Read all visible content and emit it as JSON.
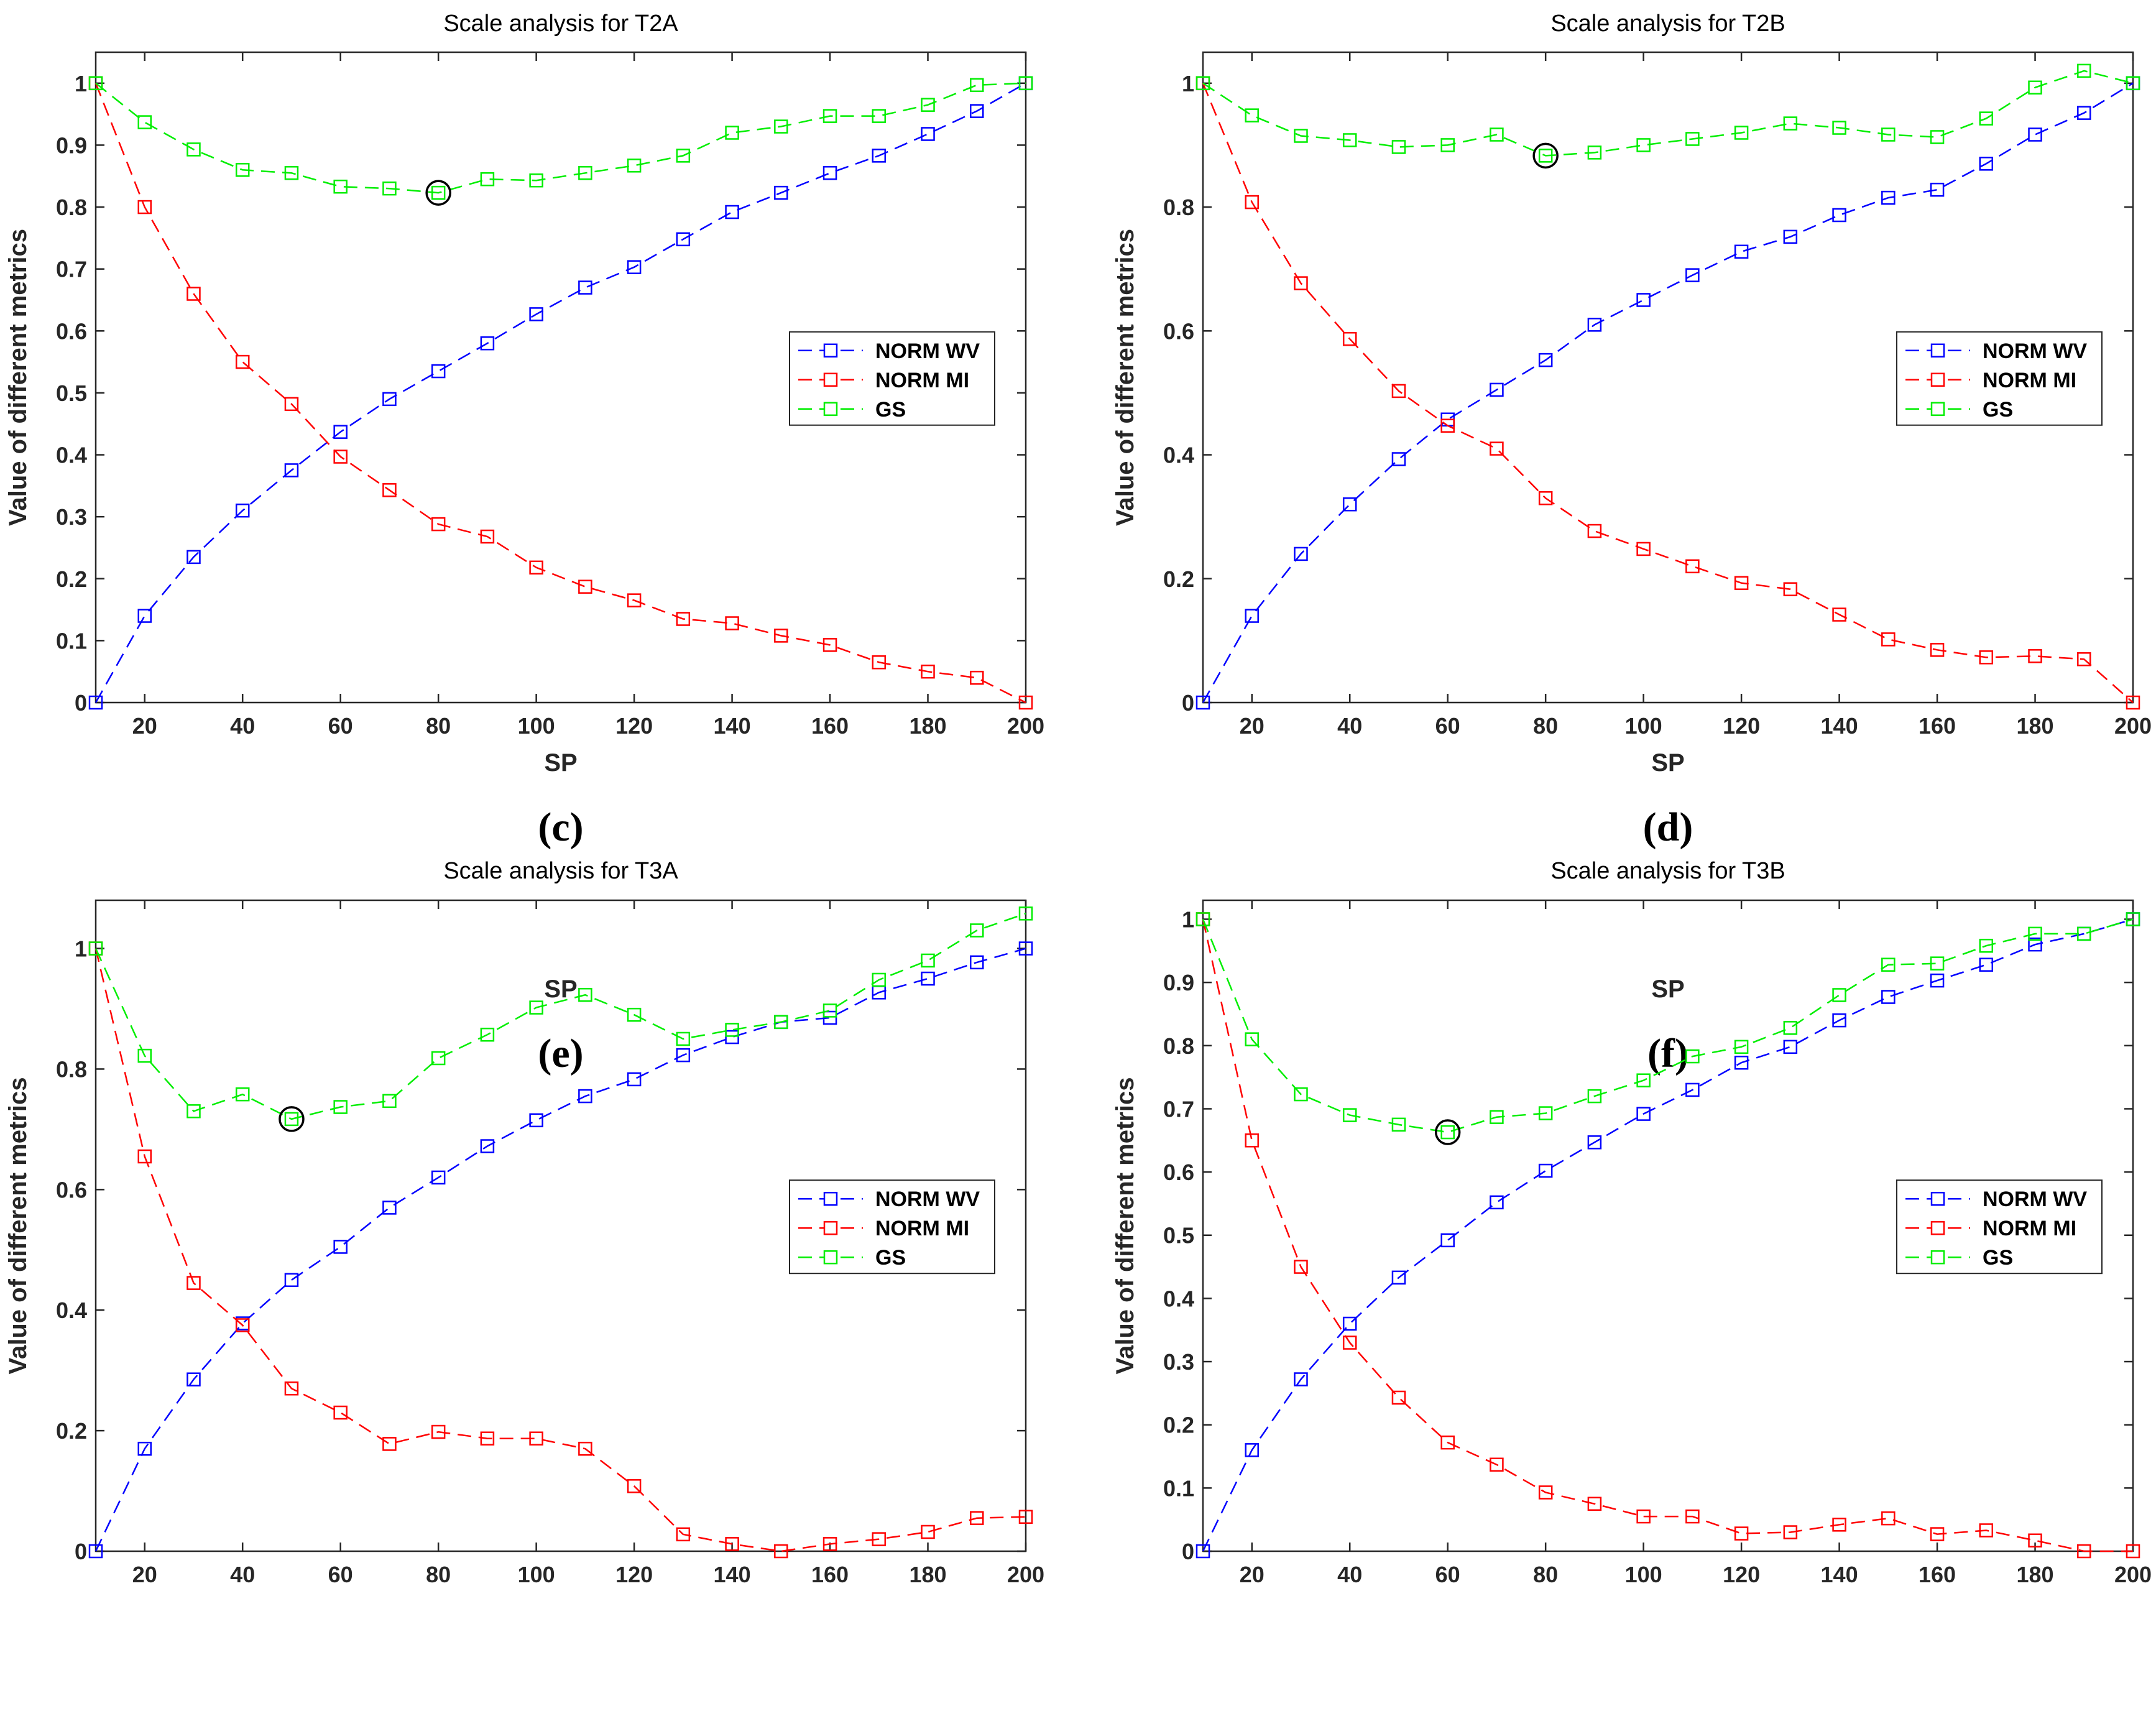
{
  "colors": {
    "norm_wv": "#0000ff",
    "norm_mi": "#ff0000",
    "gs": "#00ee00",
    "axis": "#262626",
    "marker_circle": "#000000"
  },
  "chart_data": [
    {
      "type": "line",
      "panel_label": "(c)",
      "title": "Scale analysis for T2A",
      "xlabel": "SP",
      "ylabel": "Value of different metrics",
      "xlim": [
        10,
        200
      ],
      "ylim": [
        0,
        1.05
      ],
      "xticks": [
        20,
        40,
        60,
        80,
        100,
        120,
        140,
        160,
        180,
        200
      ],
      "yticks": [
        0,
        0.1,
        0.2,
        0.3,
        0.4,
        0.5,
        0.6,
        0.7,
        0.8,
        0.9,
        1
      ],
      "ytick_labels": [
        "0",
        "0.1",
        "0.2",
        "0.3",
        "0.4",
        "0.5",
        "0.6",
        "0.7",
        "0.8",
        "0.9",
        "1"
      ],
      "legend_position": "center-right",
      "x": [
        10,
        20,
        30,
        40,
        50,
        60,
        70,
        80,
        90,
        100,
        110,
        120,
        130,
        140,
        150,
        160,
        170,
        180,
        190,
        200
      ],
      "series": [
        {
          "name": "NORM WV",
          "color_key": "norm_wv",
          "values": [
            0,
            0.14,
            0.235,
            0.31,
            0.375,
            0.437,
            0.49,
            0.535,
            0.58,
            0.627,
            0.67,
            0.703,
            0.748,
            0.792,
            0.823,
            0.855,
            0.883,
            0.918,
            0.955,
            1.0
          ]
        },
        {
          "name": "NORM MI",
          "color_key": "norm_mi",
          "values": [
            1.0,
            0.8,
            0.66,
            0.55,
            0.482,
            0.397,
            0.343,
            0.288,
            0.268,
            0.218,
            0.187,
            0.165,
            0.135,
            0.128,
            0.108,
            0.093,
            0.065,
            0.05,
            0.04,
            0.0
          ]
        },
        {
          "name": "GS",
          "color_key": "gs",
          "values": [
            1.0,
            0.937,
            0.893,
            0.86,
            0.855,
            0.833,
            0.83,
            0.823,
            0.845,
            0.843,
            0.855,
            0.867,
            0.883,
            0.92,
            0.93,
            0.947,
            0.947,
            0.965,
            0.997,
            1.0
          ]
        }
      ],
      "highlight": {
        "x": 80,
        "y": 0.823
      }
    },
    {
      "type": "line",
      "panel_label": "(d)",
      "title": "Scale analysis for T2B",
      "xlabel": "SP",
      "ylabel": "Value of different metrics",
      "xlim": [
        10,
        200
      ],
      "ylim": [
        0,
        1.05
      ],
      "xticks": [
        20,
        40,
        60,
        80,
        100,
        120,
        140,
        160,
        180,
        200
      ],
      "yticks": [
        0,
        0.2,
        0.4,
        0.6,
        0.8,
        1
      ],
      "ytick_labels": [
        "0",
        "0.2",
        "0.4",
        "0.6",
        "0.8",
        "1"
      ],
      "legend_position": "center-right",
      "x": [
        10,
        20,
        30,
        40,
        50,
        60,
        70,
        80,
        90,
        100,
        110,
        120,
        130,
        140,
        150,
        160,
        170,
        180,
        190,
        200
      ],
      "series": [
        {
          "name": "NORM WV",
          "color_key": "norm_wv",
          "values": [
            0,
            0.14,
            0.24,
            0.32,
            0.393,
            0.457,
            0.505,
            0.553,
            0.61,
            0.65,
            0.69,
            0.728,
            0.752,
            0.787,
            0.815,
            0.828,
            0.87,
            0.917,
            0.952,
            1.0
          ]
        },
        {
          "name": "NORM MI",
          "color_key": "norm_mi",
          "values": [
            1.0,
            0.808,
            0.677,
            0.587,
            0.503,
            0.447,
            0.41,
            0.33,
            0.277,
            0.248,
            0.22,
            0.193,
            0.183,
            0.142,
            0.102,
            0.085,
            0.073,
            0.075,
            0.07,
            0.0
          ]
        },
        {
          "name": "GS",
          "color_key": "gs",
          "values": [
            1.0,
            0.948,
            0.915,
            0.908,
            0.897,
            0.9,
            0.917,
            0.883,
            0.888,
            0.9,
            0.91,
            0.92,
            0.935,
            0.928,
            0.917,
            0.913,
            0.943,
            0.993,
            1.02,
            1.0
          ]
        }
      ],
      "highlight": {
        "x": 80,
        "y": 0.883
      }
    },
    {
      "type": "line",
      "panel_label": "(e)",
      "title": "Scale analysis for T3A",
      "xlabel": "SP",
      "ylabel": "Value of different metrics",
      "xlim": [
        10,
        200
      ],
      "ylim": [
        0,
        1.08
      ],
      "xticks": [
        20,
        40,
        60,
        80,
        100,
        120,
        140,
        160,
        180,
        200
      ],
      "yticks": [
        0,
        0.2,
        0.4,
        0.6,
        0.8,
        1
      ],
      "ytick_labels": [
        "0",
        "0.2",
        "0.4",
        "0.6",
        "0.8",
        "1"
      ],
      "legend_position": "center-right",
      "x": [
        10,
        20,
        30,
        40,
        50,
        60,
        70,
        80,
        90,
        100,
        110,
        120,
        130,
        140,
        150,
        160,
        170,
        180,
        190,
        200
      ],
      "series": [
        {
          "name": "NORM WV",
          "color_key": "norm_wv",
          "values": [
            0,
            0.17,
            0.285,
            0.378,
            0.45,
            0.505,
            0.57,
            0.62,
            0.672,
            0.715,
            0.755,
            0.783,
            0.823,
            0.853,
            0.878,
            0.885,
            0.927,
            0.95,
            0.977,
            1.0
          ]
        },
        {
          "name": "NORM MI",
          "color_key": "norm_mi",
          "values": [
            1.0,
            0.655,
            0.445,
            0.375,
            0.27,
            0.23,
            0.178,
            0.198,
            0.187,
            0.187,
            0.17,
            0.108,
            0.028,
            0.012,
            0.0,
            0.012,
            0.02,
            0.032,
            0.055,
            0.057
          ]
        },
        {
          "name": "GS",
          "color_key": "gs",
          "values": [
            1.0,
            0.822,
            0.73,
            0.758,
            0.717,
            0.737,
            0.747,
            0.818,
            0.857,
            0.902,
            0.923,
            0.89,
            0.85,
            0.865,
            0.878,
            0.897,
            0.948,
            0.98,
            1.03,
            1.058
          ]
        }
      ],
      "highlight": {
        "x": 50,
        "y": 0.717
      }
    },
    {
      "type": "line",
      "panel_label": "(f)",
      "title": "Scale analysis for T3B",
      "xlabel": "SP",
      "ylabel": "Value of different metrics",
      "xlim": [
        10,
        200
      ],
      "ylim": [
        0,
        1.03
      ],
      "xticks": [
        20,
        40,
        60,
        80,
        100,
        120,
        140,
        160,
        180,
        200
      ],
      "yticks": [
        0,
        0.1,
        0.2,
        0.3,
        0.4,
        0.5,
        0.6,
        0.7,
        0.8,
        0.9,
        1
      ],
      "ytick_labels": [
        "0",
        "0.1",
        "0.2",
        "0.3",
        "0.4",
        "0.5",
        "0.6",
        "0.7",
        "0.8",
        "0.9",
        "1"
      ],
      "legend_position": "center-right",
      "x": [
        10,
        20,
        30,
        40,
        50,
        60,
        70,
        80,
        90,
        100,
        110,
        120,
        130,
        140,
        150,
        160,
        170,
        180,
        190,
        200
      ],
      "series": [
        {
          "name": "NORM WV",
          "color_key": "norm_wv",
          "values": [
            0,
            0.16,
            0.272,
            0.36,
            0.433,
            0.492,
            0.552,
            0.602,
            0.647,
            0.692,
            0.73,
            0.773,
            0.798,
            0.84,
            0.877,
            0.903,
            0.928,
            0.96,
            0.977,
            1.0
          ]
        },
        {
          "name": "NORM MI",
          "color_key": "norm_mi",
          "values": [
            1.0,
            0.65,
            0.45,
            0.33,
            0.243,
            0.172,
            0.137,
            0.093,
            0.075,
            0.055,
            0.055,
            0.028,
            0.03,
            0.042,
            0.052,
            0.027,
            0.033,
            0.017,
            0.0,
            0.0
          ]
        },
        {
          "name": "GS",
          "color_key": "gs",
          "values": [
            1.0,
            0.81,
            0.723,
            0.69,
            0.675,
            0.663,
            0.687,
            0.693,
            0.72,
            0.745,
            0.783,
            0.798,
            0.828,
            0.88,
            0.928,
            0.93,
            0.958,
            0.977,
            0.977,
            1.0
          ]
        }
      ],
      "highlight": {
        "x": 60,
        "y": 0.663
      }
    }
  ]
}
